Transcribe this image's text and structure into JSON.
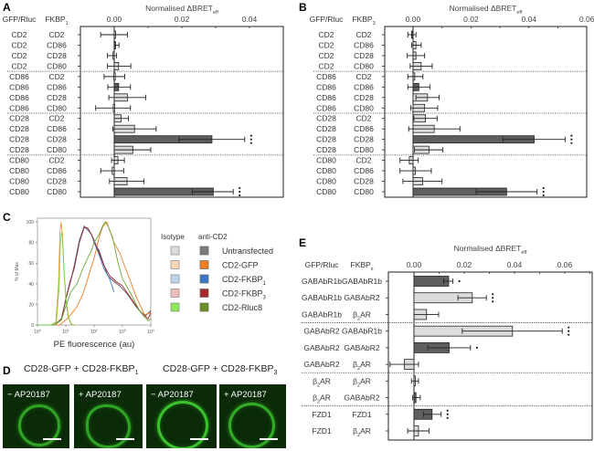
{
  "panels": {
    "A": {
      "letter": "A"
    },
    "B": {
      "letter": "B"
    },
    "C": {
      "letter": "C"
    },
    "D": {
      "letter": "D"
    },
    "E": {
      "letter": "E"
    }
  },
  "panel_c": {
    "legend_headers": {
      "isotype": "Isotype",
      "anti": "anti-CD2"
    },
    "legend": [
      {
        "label": "Untransfected",
        "isotype_color": "#d9dde0",
        "anti_color": "#7b7b7b"
      },
      {
        "label": "CD2-GFP",
        "isotype_color": "#fbd7b8",
        "anti_color": "#ef7d22"
      },
      {
        "label": "CD2-FKBP₁",
        "isotype_color": "#bcd4ec",
        "anti_color": "#3a79c4"
      },
      {
        "label": "CD2-FKBP₃",
        "isotype_color": "#ebbcbc",
        "anti_color": "#a52a2a"
      },
      {
        "label": "CD2-Rluc8",
        "isotype_color": "#8ee85c",
        "anti_color": "#6b8e23"
      }
    ]
  },
  "panel_d": {
    "titles": [
      "CD28-GFP + CD28-FKBP",
      "CD28-GFP + CD28-FKBP"
    ],
    "title_subs": [
      "1",
      "3"
    ],
    "images": [
      {
        "caption": "− AP20187"
      },
      {
        "caption": "+ AP20187"
      },
      {
        "caption": "− AP20187"
      },
      {
        "caption": "+ AP20187"
      }
    ]
  },
  "chart_data": [
    {
      "panel": "A",
      "type": "bar",
      "orientation": "horizontal",
      "title": "Normalised ΔBRETeff",
      "xlabel": "Normalised ΔBRETeff",
      "col_headers": [
        "GFP/Rluc",
        "FKBP1"
      ],
      "xlim": [
        -0.01,
        0.05
      ],
      "xticks": [
        0.0,
        0.02,
        0.04
      ],
      "xtick_labels": [
        "0.00",
        "0.02",
        "0.04"
      ],
      "group_separators_after": [
        3,
        7,
        11
      ],
      "rows": [
        {
          "gfp": "CD2",
          "fkbp": "CD2",
          "value": 0.0,
          "err_lo": -0.004,
          "err_hi": 0.0039,
          "color": "light",
          "sig": ""
        },
        {
          "gfp": "CD2",
          "fkbp": "CD86",
          "value": 0.0002,
          "err_lo": 0.0,
          "err_hi": 0.0014,
          "color": "dark",
          "sig": ""
        },
        {
          "gfp": "CD2",
          "fkbp": "CD28",
          "value": -0.0004,
          "err_lo": -0.002,
          "err_hi": 0.0007,
          "color": "light",
          "sig": ""
        },
        {
          "gfp": "CD2",
          "fkbp": "CD80",
          "value": 0.0013,
          "err_lo": -0.002,
          "err_hi": 0.0049,
          "color": "light",
          "sig": ""
        },
        {
          "gfp": "CD86",
          "fkbp": "CD2",
          "value": -0.0001,
          "err_lo": -0.003,
          "err_hi": 0.0031,
          "color": "light",
          "sig": ""
        },
        {
          "gfp": "CD86",
          "fkbp": "CD86",
          "value": 0.0013,
          "err_lo": -0.0019,
          "err_hi": 0.0048,
          "color": "dark",
          "sig": ""
        },
        {
          "gfp": "CD86",
          "fkbp": "CD28",
          "value": 0.0039,
          "err_lo": -0.0016,
          "err_hi": 0.0093,
          "color": "light",
          "sig": ""
        },
        {
          "gfp": "CD86",
          "fkbp": "CD80",
          "value": -0.0003,
          "err_lo": -0.0055,
          "err_hi": 0.0048,
          "color": "light",
          "sig": ""
        },
        {
          "gfp": "CD28",
          "fkbp": "CD2",
          "value": 0.002,
          "err_lo": 0.0,
          "err_hi": 0.0042,
          "color": "light",
          "sig": ""
        },
        {
          "gfp": "CD28",
          "fkbp": "CD86",
          "value": 0.006,
          "err_lo": -0.0004,
          "err_hi": 0.0124,
          "color": "light",
          "sig": ""
        },
        {
          "gfp": "CD28",
          "fkbp": "CD28",
          "value": 0.0289,
          "err_lo": 0.0192,
          "err_hi": 0.0386,
          "color": "dark",
          "sig": "***"
        },
        {
          "gfp": "CD28",
          "fkbp": "CD80",
          "value": 0.0055,
          "err_lo": 0.0,
          "err_hi": 0.0108,
          "color": "light",
          "sig": ""
        },
        {
          "gfp": "CD80",
          "fkbp": "CD2",
          "value": 0.0011,
          "err_lo": -0.0008,
          "err_hi": 0.003,
          "color": "light",
          "sig": ""
        },
        {
          "gfp": "CD80",
          "fkbp": "CD86",
          "value": -0.0006,
          "err_lo": -0.004,
          "err_hi": 0.0028,
          "color": "light",
          "sig": ""
        },
        {
          "gfp": "CD80",
          "fkbp": "CD28",
          "value": 0.0038,
          "err_lo": -0.0014,
          "err_hi": 0.0088,
          "color": "light",
          "sig": ""
        },
        {
          "gfp": "CD80",
          "fkbp": "CD80",
          "value": 0.0293,
          "err_lo": 0.0231,
          "err_hi": 0.0352,
          "color": "dark",
          "sig": "***"
        }
      ]
    },
    {
      "panel": "B",
      "type": "bar",
      "orientation": "horizontal",
      "title": "Normalised ΔBRETeff",
      "xlabel": "Normalised ΔBRETeff",
      "col_headers": [
        "GFP/Rluc",
        "FKBP3"
      ],
      "xlim": [
        -0.01,
        0.06
      ],
      "xticks": [
        0.0,
        0.02,
        0.04,
        0.06
      ],
      "xtick_labels": [
        "0.00",
        "0.02",
        "0.04",
        "0.06"
      ],
      "group_separators_after": [
        3,
        7,
        11
      ],
      "rows": [
        {
          "gfp": "CD2",
          "fkbp": "CD2",
          "value": -0.0005,
          "err_lo": -0.0018,
          "err_hi": 0.001,
          "color": "dark",
          "sig": ""
        },
        {
          "gfp": "CD2",
          "fkbp": "CD86",
          "value": 0.001,
          "err_lo": -0.0005,
          "err_hi": 0.0028,
          "color": "light",
          "sig": ""
        },
        {
          "gfp": "CD2",
          "fkbp": "CD28",
          "value": 0.001,
          "err_lo": -0.002,
          "err_hi": 0.004,
          "color": "light",
          "sig": ""
        },
        {
          "gfp": "CD2",
          "fkbp": "CD80",
          "value": 0.0028,
          "err_lo": -0.001,
          "err_hi": 0.0066,
          "color": "light",
          "sig": ""
        },
        {
          "gfp": "CD86",
          "fkbp": "CD2",
          "value": 0.0006,
          "err_lo": -0.0018,
          "err_hi": 0.0034,
          "color": "light",
          "sig": ""
        },
        {
          "gfp": "CD86",
          "fkbp": "CD86",
          "value": 0.002,
          "err_lo": -0.0018,
          "err_hi": 0.0058,
          "color": "dark",
          "sig": ""
        },
        {
          "gfp": "CD86",
          "fkbp": "CD28",
          "value": 0.005,
          "err_lo": 0.001,
          "err_hi": 0.009,
          "color": "light",
          "sig": ""
        },
        {
          "gfp": "CD86",
          "fkbp": "CD80",
          "value": 0.004,
          "err_lo": -0.0008,
          "err_hi": 0.0085,
          "color": "light",
          "sig": ""
        },
        {
          "gfp": "CD28",
          "fkbp": "CD2",
          "value": 0.0043,
          "err_lo": 0.0003,
          "err_hi": 0.0083,
          "color": "light",
          "sig": ""
        },
        {
          "gfp": "CD28",
          "fkbp": "CD86",
          "value": 0.0073,
          "err_lo": -0.0015,
          "err_hi": 0.0162,
          "color": "light",
          "sig": ""
        },
        {
          "gfp": "CD28",
          "fkbp": "CD28",
          "value": 0.0418,
          "err_lo": 0.031,
          "err_hi": 0.0525,
          "color": "dark",
          "sig": "***"
        },
        {
          "gfp": "CD28",
          "fkbp": "CD80",
          "value": 0.0055,
          "err_lo": 0.0005,
          "err_hi": 0.0103,
          "color": "light",
          "sig": ""
        },
        {
          "gfp": "CD80",
          "fkbp": "CD2",
          "value": -0.0013,
          "err_lo": -0.0045,
          "err_hi": 0.0018,
          "color": "light",
          "sig": ""
        },
        {
          "gfp": "CD80",
          "fkbp": "CD86",
          "value": 0.0008,
          "err_lo": -0.0045,
          "err_hi": 0.0063,
          "color": "light",
          "sig": ""
        },
        {
          "gfp": "CD80",
          "fkbp": "CD28",
          "value": 0.0033,
          "err_lo": -0.0035,
          "err_hi": 0.01,
          "color": "light",
          "sig": ""
        },
        {
          "gfp": "CD80",
          "fkbp": "CD80",
          "value": 0.0323,
          "err_lo": 0.0218,
          "err_hi": 0.0428,
          "color": "dark",
          "sig": "***"
        }
      ]
    },
    {
      "panel": "C",
      "type": "line",
      "title": "",
      "xlabel": "PE fluorescence (au)",
      "ylabel": "% of Max",
      "xscale": "log",
      "xlim": [
        1,
        10000
      ],
      "ylim": [
        0,
        100
      ],
      "xtick_labels": [
        "10^0",
        "10^1",
        "10^2",
        "10^3",
        "10^4"
      ],
      "yticks": [
        0,
        20,
        40,
        60,
        80,
        100
      ],
      "series": [
        {
          "name": "Isotype (all)",
          "color": "#e8a23a",
          "points": [
            [
              1,
              0
            ],
            [
              3,
              0
            ],
            [
              4.5,
              3
            ],
            [
              5.5,
              40
            ],
            [
              6.2,
              90
            ],
            [
              6.8,
              100
            ],
            [
              7.5,
              90
            ],
            [
              8.5,
              55
            ],
            [
              10,
              25
            ],
            [
              12,
              8
            ],
            [
              15,
              1
            ],
            [
              20,
              0
            ]
          ]
        },
        {
          "name": "Untransfected anti-CD2",
          "color": "#5a4a6a",
          "points": [
            [
              1,
              0
            ],
            [
              4,
              0
            ],
            [
              7,
              5
            ],
            [
              10,
              25
            ],
            [
              14,
              42
            ],
            [
              20,
              55
            ],
            [
              30,
              80
            ],
            [
              45,
              95
            ],
            [
              60,
              92
            ],
            [
              80,
              88
            ],
            [
              100,
              80
            ],
            [
              150,
              72
            ],
            [
              200,
              62
            ],
            [
              300,
              48
            ],
            [
              500,
              42
            ],
            [
              800,
              38
            ],
            [
              1500,
              30
            ],
            [
              3000,
              18
            ],
            [
              6000,
              8
            ],
            [
              10000,
              14
            ]
          ]
        },
        {
          "name": "CD2-GFP anti-CD2",
          "color": "#ef7d22",
          "points": [
            [
              1,
              0
            ],
            [
              6,
              0
            ],
            [
              10,
              5
            ],
            [
              15,
              10
            ],
            [
              25,
              18
            ],
            [
              40,
              30
            ],
            [
              60,
              45
            ],
            [
              100,
              65
            ],
            [
              150,
              85
            ],
            [
              200,
              95
            ],
            [
              280,
              100
            ],
            [
              350,
              92
            ],
            [
              500,
              80
            ],
            [
              800,
              70
            ],
            [
              1500,
              50
            ],
            [
              3000,
              28
            ],
            [
              6000,
              10
            ],
            [
              10000,
              12
            ]
          ]
        },
        {
          "name": "CD2-FKBP1 anti-CD2",
          "color": "#3a79c4",
          "points": [
            [
              1,
              0
            ],
            [
              4,
              0
            ],
            [
              7,
              6
            ],
            [
              10,
              25
            ],
            [
              14,
              40
            ],
            [
              20,
              58
            ],
            [
              30,
              82
            ],
            [
              45,
              96
            ],
            [
              60,
              92
            ],
            [
              80,
              88
            ],
            [
              100,
              80
            ],
            [
              150,
              68
            ],
            [
              220,
              55
            ],
            [
              350,
              45
            ],
            [
              500,
              32
            ]
          ]
        },
        {
          "name": "CD2-FKBP3 anti-CD2",
          "color": "#a52a2a",
          "points": [
            [
              1,
              0
            ],
            [
              4,
              0
            ],
            [
              7,
              6
            ],
            [
              10,
              24
            ],
            [
              14,
              40
            ],
            [
              20,
              56
            ],
            [
              30,
              80
            ],
            [
              45,
              95
            ],
            [
              60,
              94
            ],
            [
              80,
              88
            ],
            [
              100,
              82
            ],
            [
              150,
              70
            ],
            [
              220,
              58
            ],
            [
              350,
              48
            ],
            [
              600,
              42
            ],
            [
              1000,
              38
            ],
            [
              2000,
              26
            ],
            [
              4000,
              14
            ],
            [
              8000,
              6
            ],
            [
              10000,
              12
            ]
          ]
        },
        {
          "name": "CD2-Rluc8 anti-CD2",
          "color": "#6baa3a",
          "points": [
            [
              1,
              0
            ],
            [
              4,
              0
            ],
            [
              7,
              5
            ],
            [
              10,
              18
            ],
            [
              15,
              32
            ],
            [
              25,
              40
            ],
            [
              40,
              55
            ],
            [
              60,
              65
            ],
            [
              80,
              72
            ],
            [
              100,
              80
            ],
            [
              150,
              88
            ],
            [
              200,
              96
            ],
            [
              250,
              100
            ],
            [
              320,
              95
            ],
            [
              450,
              85
            ],
            [
              700,
              60
            ],
            [
              1000,
              45
            ],
            [
              2000,
              30
            ],
            [
              4000,
              14
            ],
            [
              8000,
              4
            ],
            [
              10000,
              6
            ]
          ]
        }
      ]
    },
    {
      "panel": "E",
      "type": "bar",
      "orientation": "horizontal",
      "title": "Normalised ΔBRETeff",
      "xlabel": "Normalised ΔBRETeff",
      "col_headers": [
        "GFP/Rluc",
        "FKBPx"
      ],
      "xlim": [
        -0.01,
        0.07
      ],
      "xticks": [
        0.0,
        0.02,
        0.04,
        0.06
      ],
      "xtick_labels": [
        "0.00",
        "0.02",
        "0.04",
        "0.06"
      ],
      "group_separators_after": [
        2,
        5,
        7
      ],
      "rows": [
        {
          "gfp": "GABAbR1b",
          "fkbp": "GABAbR1b",
          "value": 0.0138,
          "err_lo": 0.0118,
          "err_hi": 0.0155,
          "color": "dark",
          "sig": "*"
        },
        {
          "gfp": "GABAbR1b",
          "fkbp": "GABAbR2",
          "value": 0.0232,
          "err_lo": 0.0175,
          "err_hi": 0.0288,
          "color": "light",
          "sig": "***"
        },
        {
          "gfp": "GABAbR1b",
          "fkbp": "β2AR",
          "value": 0.005,
          "err_lo": 0.0,
          "err_hi": 0.0098,
          "color": "light",
          "sig": ""
        },
        {
          "gfp": "GABAbR2",
          "fkbp": "GABAbR1b",
          "value": 0.0392,
          "err_lo": 0.0192,
          "err_hi": 0.059,
          "color": "light",
          "sig": "***"
        },
        {
          "gfp": "GABAbR2",
          "fkbp": "GABAbR2",
          "value": 0.014,
          "err_lo": 0.0055,
          "err_hi": 0.0225,
          "color": "dark",
          "sig": "*"
        },
        {
          "gfp": "GABAbR2",
          "fkbp": "β2AR",
          "value": -0.0038,
          "err_lo": -0.0095,
          "err_hi": 0.0018,
          "color": "light",
          "sig": ""
        },
        {
          "gfp": "β2AR",
          "fkbp": "β2AR",
          "value": 0.0003,
          "err_lo": -0.001,
          "err_hi": 0.0018,
          "color": "light",
          "sig": ""
        },
        {
          "gfp": "β2AR",
          "fkbp": "GABAbR2",
          "value": 0.0008,
          "err_lo": -0.0005,
          "err_hi": 0.0025,
          "color": "dark",
          "sig": ""
        },
        {
          "gfp": "FZD1",
          "fkbp": "FZD1",
          "value": 0.0072,
          "err_lo": 0.0038,
          "err_hi": 0.0108,
          "color": "dark",
          "sig": "***"
        },
        {
          "gfp": "FZD1",
          "fkbp": "β2AR",
          "value": 0.0018,
          "err_lo": -0.0025,
          "err_hi": 0.006,
          "color": "light",
          "sig": ""
        }
      ]
    }
  ]
}
